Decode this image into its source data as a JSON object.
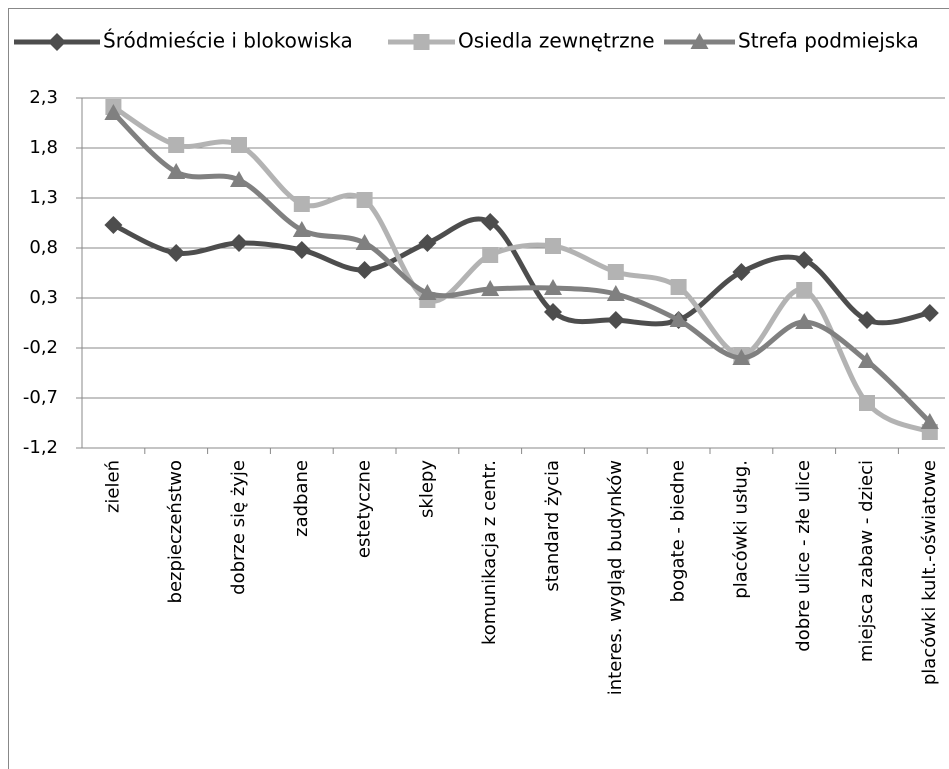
{
  "chart_data": {
    "type": "line",
    "categories": [
      "zieleń",
      "bezpieczeństwo",
      "dobrze się żyje",
      "zadbane",
      "estetyczne",
      "sklepy",
      "komunikacja z centr.",
      "standard życia",
      "interes. wygląd budynków",
      "bogate - biedne",
      "placówki usług.",
      "dobre ulice - złe ulice",
      "miejsca zabaw - dzieci",
      "placówki kult.-oświatowe"
    ],
    "series": [
      {
        "name": "Śródmieście i blokowiska",
        "color": "#4d4d4d",
        "marker": "diamond",
        "values": [
          1.03,
          0.75,
          0.85,
          0.78,
          0.58,
          0.85,
          1.06,
          0.16,
          0.08,
          0.08,
          0.56,
          0.68,
          0.08,
          0.15
        ]
      },
      {
        "name": "Osiedla zewnętrzne",
        "color": "#b3b3b3",
        "marker": "square",
        "values": [
          2.21,
          1.83,
          1.83,
          1.24,
          1.28,
          0.28,
          0.73,
          0.82,
          0.56,
          0.41,
          -0.27,
          0.38,
          -0.75,
          -1.04
        ]
      },
      {
        "name": "Strefa podmiejska",
        "color": "#808080",
        "marker": "triangle",
        "values": [
          2.15,
          1.56,
          1.48,
          0.98,
          0.85,
          0.35,
          0.39,
          0.4,
          0.34,
          0.08,
          -0.3,
          0.06,
          -0.33,
          -0.94
        ]
      }
    ],
    "ylim": [
      -1.2,
      2.3
    ],
    "yticks": [
      {
        "value": -1.2,
        "label": "-1,2"
      },
      {
        "value": -0.7,
        "label": "-0,7"
      },
      {
        "value": -0.2,
        "label": "-0,2"
      },
      {
        "value": 0.3,
        "label": "0,3"
      },
      {
        "value": 0.8,
        "label": "0,8"
      },
      {
        "value": 1.3,
        "label": "1,3"
      },
      {
        "value": 1.8,
        "label": "1,8"
      },
      {
        "value": 2.3,
        "label": "2,3"
      }
    ],
    "grid": true,
    "legend": "top",
    "smooth": true
  }
}
